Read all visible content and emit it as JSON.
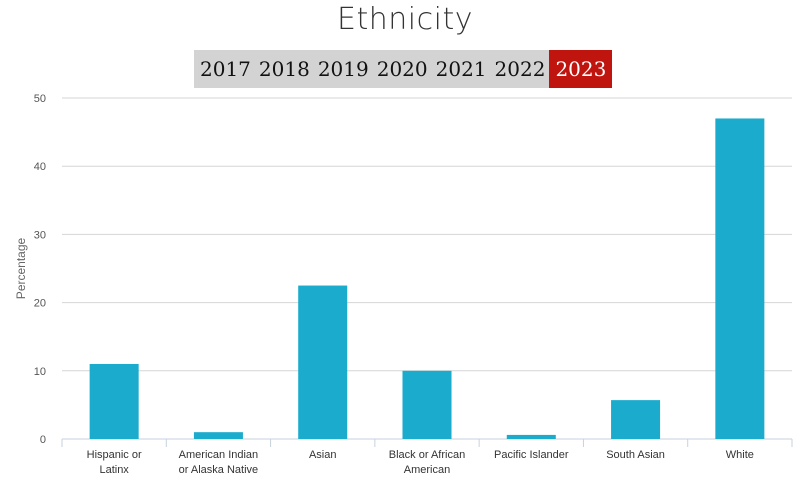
{
  "header": {
    "title": "Ethnicity"
  },
  "year_selector": {
    "years": [
      "2017",
      "2018",
      "2019",
      "2020",
      "2021",
      "2022",
      "2023"
    ],
    "selected": "2023"
  },
  "colors": {
    "bar": "#1aabcd",
    "active_year": "#c0140f",
    "year_bar_bg": "#d3d3d3"
  },
  "chart_data": {
    "type": "bar",
    "categories": [
      [
        "Hispanic or",
        "Latinx"
      ],
      [
        "American Indian",
        "or Alaska Native"
      ],
      [
        "Asian"
      ],
      [
        "Black or African",
        "American"
      ],
      [
        "Pacific Islander"
      ],
      [
        "South Asian"
      ],
      [
        "White"
      ]
    ],
    "values": [
      11.0,
      1.0,
      22.5,
      10.0,
      0.6,
      5.7,
      47.0
    ],
    "title": "Ethnicity",
    "xlabel": "",
    "ylabel": "Percentage",
    "ylim": [
      0,
      50
    ],
    "yticks": [
      0,
      10,
      20,
      30,
      40,
      50
    ],
    "grid": true,
    "legend": "none"
  }
}
